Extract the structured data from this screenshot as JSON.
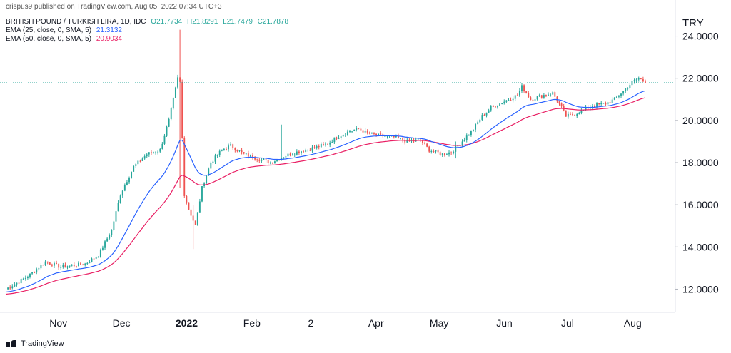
{
  "header": {
    "publisher": "crispus9 published on TradingView.com, Aug 05, 2022 07:34 UTC+3",
    "symbol": "BRITISH POUND / TURKISH LIRA, 1D, IDC",
    "ohlc": {
      "o": "O21.7734",
      "h": "H21.8291",
      "l": "L21.7479",
      "c": "C21.7878"
    },
    "ema25_label": "EMA (25, close, 0, SMA, 5)",
    "ema25_value": "21.3132",
    "ema50_label": "EMA (50, close, 0, SMA, 5)",
    "ema50_value": "20.9034"
  },
  "currency": "TRY",
  "footer": {
    "brand": "TradingView"
  },
  "colors": {
    "up": "#26a69a",
    "down": "#ef5350",
    "ema25": "#2962ff",
    "ema50": "#e91e63",
    "grid": "#e0e3eb",
    "priceline": "#26a69a"
  },
  "chart_data": {
    "type": "candlestick",
    "x_ticks": [
      "Nov",
      "Dec",
      "2022",
      "Feb",
      "2",
      "Apr",
      "May",
      "Jun",
      "Jul",
      "Aug"
    ],
    "y_ticks": [
      "24.0000",
      "22.0000",
      "20.0000",
      "18.0000",
      "16.0000",
      "14.0000",
      "12.0000"
    ],
    "ylim": [
      10.9,
      25.1
    ],
    "last_price": 21.7878,
    "period_start": "2021-10-06",
    "period_end": "2022-08-05",
    "price_keypoints": [
      [
        0,
        12.0
      ],
      [
        10,
        12.6
      ],
      [
        18,
        13.3
      ],
      [
        25,
        13.05
      ],
      [
        36,
        13.2
      ],
      [
        42,
        13.6
      ],
      [
        48,
        14.8
      ],
      [
        52,
        16.5
      ],
      [
        58,
        17.8
      ],
      [
        64,
        18.4
      ],
      [
        70,
        18.6
      ],
      [
        74,
        20.0
      ],
      [
        78,
        22.0
      ],
      [
        79,
        21.8
      ],
      [
        81,
        16.5
      ],
      [
        83,
        15.8
      ],
      [
        86,
        15.0
      ],
      [
        89,
        16.8
      ],
      [
        93,
        18.0
      ],
      [
        98,
        18.6
      ],
      [
        102,
        18.8
      ],
      [
        108,
        18.4
      ],
      [
        114,
        18.2
      ],
      [
        120,
        18.0
      ],
      [
        126,
        18.3
      ],
      [
        132,
        18.5
      ],
      [
        140,
        18.7
      ],
      [
        146,
        18.9
      ],
      [
        150,
        19.2
      ],
      [
        156,
        19.5
      ],
      [
        160,
        19.6
      ],
      [
        164,
        19.4
      ],
      [
        168,
        19.3
      ],
      [
        176,
        19.2
      ],
      [
        182,
        19.0
      ],
      [
        188,
        19.05
      ],
      [
        192,
        18.6
      ],
      [
        198,
        18.4
      ],
      [
        202,
        18.5
      ],
      [
        206,
        18.9
      ],
      [
        212,
        19.6
      ],
      [
        216,
        20.2
      ],
      [
        220,
        20.6
      ],
      [
        226,
        20.9
      ],
      [
        232,
        21.2
      ],
      [
        234,
        21.6
      ],
      [
        238,
        21.0
      ],
      [
        244,
        21.2
      ],
      [
        248,
        21.3
      ],
      [
        252,
        20.6
      ],
      [
        254,
        20.2
      ],
      [
        258,
        20.3
      ],
      [
        262,
        20.5
      ],
      [
        266,
        20.7
      ],
      [
        272,
        20.8
      ],
      [
        276,
        21.0
      ],
      [
        280,
        21.4
      ],
      [
        284,
        21.8
      ],
      [
        287,
        22.0
      ],
      [
        290,
        21.8
      ]
    ],
    "spikes": [
      [
        79,
        24.3,
        16.8
      ],
      [
        85,
        16.0,
        13.9
      ],
      [
        125,
        19.8,
        18.2
      ],
      [
        204,
        19.0,
        18.2
      ]
    ],
    "series": [
      {
        "name": "EMA (25, close, 0, SMA, 5)",
        "last": 21.3132
      },
      {
        "name": "EMA (50, close, 0, SMA, 5)",
        "last": 20.9034
      }
    ]
  }
}
